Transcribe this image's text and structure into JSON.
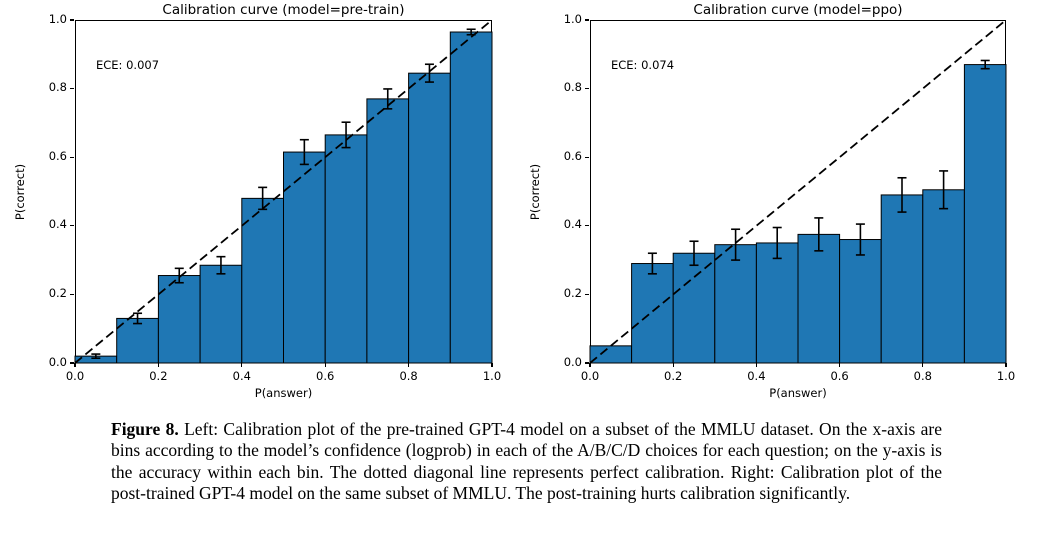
{
  "figure": {
    "caption_label": "Figure 8.",
    "caption_text": "Left: Calibration plot of the pre-trained GPT-4 model on a subset of the MMLU dataset. On the x-axis are bins according to the model’s confidence (logprob) in each of the A/B/C/D choices for each question; on the y-axis is the accuracy within each bin. The dotted diagonal line represents perfect calibration. Right: Calibration plot of the post-trained GPT-4 model on the same subset of MMLU. The post-training hurts calibration significantly."
  },
  "colors": {
    "bar_fill": "#1f77b4",
    "bar_edge": "#000000",
    "error_bar": "#000000",
    "reference_line": "#000000",
    "text": "#000000",
    "background": "#ffffff"
  },
  "chart_data": [
    {
      "type": "bar",
      "title": "Calibration curve (model=pre-train)",
      "annotation": "ECE: 0.007",
      "xlabel": "P(answer)",
      "ylabel": "P(correct)",
      "xlim": [
        0.0,
        1.0
      ],
      "ylim": [
        0.0,
        1.0
      ],
      "grid": false,
      "legend": "none",
      "reference_line": "y=x dashed diagonal (perfect calibration)",
      "bin_width": 0.1,
      "bin_starts": [
        0.0,
        0.1,
        0.2,
        0.3,
        0.4,
        0.5,
        0.6,
        0.7,
        0.8,
        0.9
      ],
      "values": [
        0.02,
        0.13,
        0.255,
        0.285,
        0.48,
        0.615,
        0.665,
        0.77,
        0.845,
        0.965
      ],
      "errors": [
        0.006,
        0.015,
        0.021,
        0.025,
        0.032,
        0.036,
        0.037,
        0.029,
        0.026,
        0.008
      ],
      "x_tick_labels": [
        "0.0",
        "0.2",
        "0.4",
        "0.6",
        "0.8",
        "1.0"
      ],
      "y_tick_labels": [
        "0.0",
        "0.2",
        "0.4",
        "0.6",
        "0.8",
        "1.0"
      ]
    },
    {
      "type": "bar",
      "title": "Calibration curve (model=ppo)",
      "annotation": "ECE: 0.074",
      "xlabel": "P(answer)",
      "ylabel": "P(correct)",
      "xlim": [
        0.0,
        1.0
      ],
      "ylim": [
        0.0,
        1.0
      ],
      "grid": false,
      "legend": "none",
      "reference_line": "y=x dashed diagonal (perfect calibration)",
      "bin_width": 0.1,
      "bin_starts": [
        0.0,
        0.1,
        0.2,
        0.3,
        0.4,
        0.5,
        0.6,
        0.7,
        0.8,
        0.9
      ],
      "values": [
        0.05,
        0.29,
        0.32,
        0.345,
        0.35,
        0.375,
        0.36,
        0.49,
        0.505,
        0.87
      ],
      "errors": [
        0,
        0.03,
        0.035,
        0.045,
        0.045,
        0.048,
        0.045,
        0.05,
        0.055,
        0.012
      ],
      "x_tick_labels": [
        "0.0",
        "0.2",
        "0.4",
        "0.6",
        "0.8",
        "1.0"
      ],
      "y_tick_labels": [
        "0.0",
        "0.2",
        "0.4",
        "0.6",
        "0.8",
        "1.0"
      ]
    }
  ]
}
